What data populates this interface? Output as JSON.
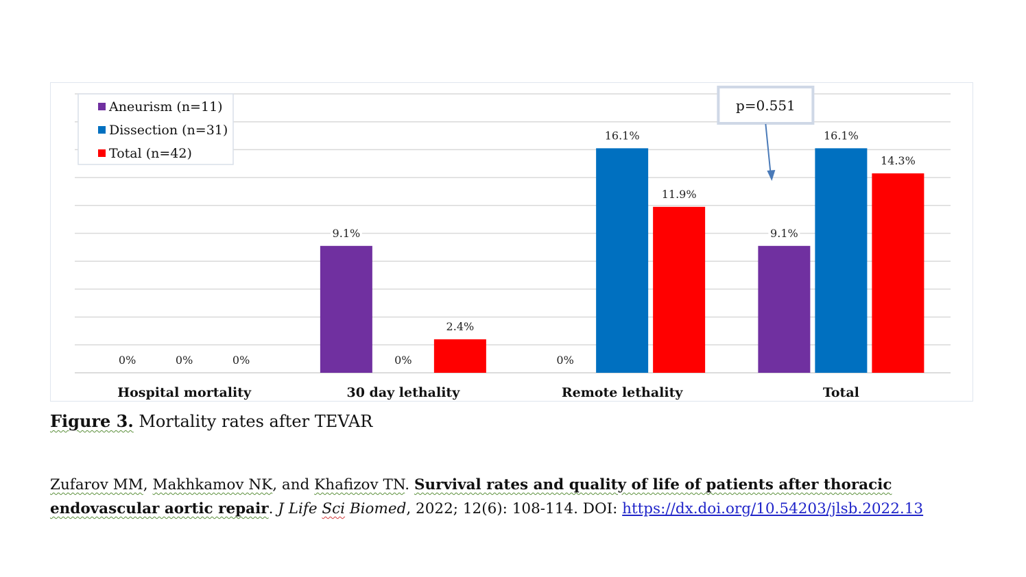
{
  "chart_data": {
    "type": "bar",
    "categories": [
      "Hospital mortality",
      "30 day lethality",
      "Remote lethality",
      "Total"
    ],
    "series": [
      {
        "name": "Aneurism (n=11)",
        "color": "#7030a0",
        "values": [
          0,
          9.1,
          0,
          9.1
        ],
        "labels": [
          "0%",
          "9.1%",
          "0%",
          "9.1%"
        ]
      },
      {
        "name": "Dissection (n=31)",
        "color": "#0070c0",
        "values": [
          0,
          0,
          16.1,
          16.1
        ],
        "labels": [
          "0%",
          "0%",
          "16.1%",
          "16.1%"
        ]
      },
      {
        "name": "Total (n=42)",
        "color": "#ff0000",
        "values": [
          0,
          2.4,
          11.9,
          14.3
        ],
        "labels": [
          "0%",
          "2.4%",
          "11.9%",
          "14.3%"
        ]
      }
    ],
    "ylim": [
      0,
      20
    ],
    "grid": true,
    "legend": "top-left",
    "annotation": {
      "text": "p=0.551",
      "points_to": "Total"
    }
  },
  "caption": {
    "label": "Figure 3.",
    "text": " Mortality rates after TEVAR"
  },
  "citation": {
    "authors_1": "Zufarov MM",
    "sep_1": ", ",
    "authors_2": "Makhkamov NK",
    "sep_2": ", and ",
    "authors_3": "Khafizov TN",
    "sep_3": ". ",
    "title": "Survival rates and quality of life of patients after thoracic endovascular aortic repair",
    "sep_4": ". ",
    "journal_1": "J Life ",
    "journal_2": "Sci",
    "journal_3": " Biomed",
    "details": ", 2022;  12(6): 108-114. DOI: ",
    "doi": "https://dx.doi.org/10.54203/jlsb.2022.13"
  }
}
